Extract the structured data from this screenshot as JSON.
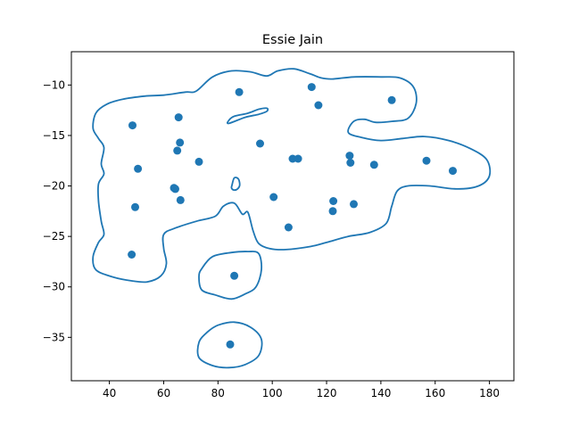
{
  "chart_data": {
    "type": "scatter",
    "title": "Essie Jain",
    "xlabel": "",
    "ylabel": "",
    "xlim": [
      26,
      189
    ],
    "ylim": [
      -39.3,
      -6.7
    ],
    "xticks": [
      40,
      60,
      80,
      100,
      120,
      140,
      160,
      180
    ],
    "yticks": [
      -35,
      -30,
      -25,
      -20,
      -15,
      -10
    ],
    "xtick_labels": [
      "40",
      "60",
      "80",
      "100",
      "120",
      "140",
      "160",
      "180"
    ],
    "ytick_labels": [
      "−35",
      "−30",
      "−25",
      "−20",
      "−15",
      "−10"
    ],
    "grid": false,
    "point_color": "#1f77b4",
    "contour_color": "#1f77b4",
    "points": [
      {
        "x": 48.5,
        "y": -14.0
      },
      {
        "x": 50.5,
        "y": -18.3
      },
      {
        "x": 49.5,
        "y": -22.1
      },
      {
        "x": 48.2,
        "y": -26.8
      },
      {
        "x": 65.5,
        "y": -13.2
      },
      {
        "x": 66.0,
        "y": -15.7
      },
      {
        "x": 65.0,
        "y": -16.5
      },
      {
        "x": 73.0,
        "y": -17.6
      },
      {
        "x": 63.8,
        "y": -20.2
      },
      {
        "x": 64.3,
        "y": -20.3
      },
      {
        "x": 66.2,
        "y": -21.4
      },
      {
        "x": 87.8,
        "y": -10.7
      },
      {
        "x": 95.5,
        "y": -15.8
      },
      {
        "x": 100.5,
        "y": -21.1
      },
      {
        "x": 106.0,
        "y": -24.1
      },
      {
        "x": 107.5,
        "y": -17.3
      },
      {
        "x": 109.5,
        "y": -17.3
      },
      {
        "x": 114.5,
        "y": -10.2
      },
      {
        "x": 117.0,
        "y": -12.0
      },
      {
        "x": 122.5,
        "y": -21.5
      },
      {
        "x": 122.3,
        "y": -22.5
      },
      {
        "x": 128.5,
        "y": -17.0
      },
      {
        "x": 128.8,
        "y": -17.7
      },
      {
        "x": 130.0,
        "y": -21.8
      },
      {
        "x": 137.5,
        "y": -17.9
      },
      {
        "x": 144.0,
        "y": -11.5
      },
      {
        "x": 156.8,
        "y": -17.5
      },
      {
        "x": 166.5,
        "y": -18.5
      },
      {
        "x": 86.0,
        "y": -28.9
      },
      {
        "x": 84.5,
        "y": -35.7
      }
    ],
    "contours": [
      [
        [
          60,
          -11.0
        ],
        [
          68,
          -10.7
        ],
        [
          72,
          -10.6
        ],
        [
          78,
          -9.2
        ],
        [
          85,
          -8.6
        ],
        [
          92,
          -8.7
        ],
        [
          98,
          -9.1
        ],
        [
          102,
          -8.6
        ],
        [
          108,
          -8.4
        ],
        [
          114,
          -8.9
        ],
        [
          118,
          -9.3
        ],
        [
          122,
          -9.4
        ],
        [
          130,
          -9.2
        ],
        [
          140,
          -9.2
        ],
        [
          147,
          -9.3
        ],
        [
          152,
          -10.2
        ],
        [
          153,
          -11.8
        ],
        [
          150,
          -13.3
        ],
        [
          144,
          -13.6
        ],
        [
          138,
          -13.7
        ],
        [
          134,
          -13.4
        ],
        [
          130,
          -13.6
        ],
        [
          128,
          -14.7
        ],
        [
          133,
          -15.2
        ],
        [
          140,
          -15.5
        ],
        [
          148,
          -15.3
        ],
        [
          156,
          -15.1
        ],
        [
          165,
          -15.5
        ],
        [
          173,
          -16.3
        ],
        [
          179,
          -17.4
        ],
        [
          180,
          -19.0
        ],
        [
          176,
          -20.0
        ],
        [
          168,
          -20.3
        ],
        [
          158,
          -20.0
        ],
        [
          150,
          -20.0
        ],
        [
          146,
          -20.5
        ],
        [
          144,
          -22.0
        ],
        [
          142,
          -23.7
        ],
        [
          136,
          -24.6
        ],
        [
          128,
          -25.0
        ],
        [
          120,
          -25.6
        ],
        [
          114,
          -26.0
        ],
        [
          105,
          -26.3
        ],
        [
          99,
          -26.2
        ],
        [
          95,
          -25.7
        ],
        [
          93,
          -24.5
        ],
        [
          91,
          -22.6
        ],
        [
          89,
          -22.8
        ],
        [
          86,
          -21.7
        ],
        [
          82,
          -22.0
        ],
        [
          79,
          -23.0
        ],
        [
          72,
          -23.5
        ],
        [
          64,
          -24.2
        ],
        [
          60,
          -24.8
        ],
        [
          60,
          -26.2
        ],
        [
          61,
          -27.7
        ],
        [
          59,
          -28.9
        ],
        [
          54,
          -29.5
        ],
        [
          48,
          -29.4
        ],
        [
          41,
          -29.0
        ],
        [
          35,
          -28.3
        ],
        [
          34,
          -27.0
        ],
        [
          36,
          -25.6
        ],
        [
          38,
          -24.8
        ],
        [
          37,
          -23.5
        ],
        [
          36,
          -21.5
        ],
        [
          36,
          -19.8
        ],
        [
          38,
          -18.8
        ],
        [
          37,
          -17.8
        ],
        [
          38,
          -16.2
        ],
        [
          36,
          -15.3
        ],
        [
          34,
          -14.3
        ],
        [
          35,
          -12.8
        ],
        [
          39,
          -11.9
        ],
        [
          45,
          -11.4
        ],
        [
          53,
          -11.1
        ],
        [
          60,
          -11.0
        ]
      ],
      [
        [
          84,
          -13.8
        ],
        [
          90,
          -13.2
        ],
        [
          95,
          -12.9
        ],
        [
          98,
          -12.6
        ],
        [
          98,
          -12.3
        ],
        [
          95,
          -12.4
        ],
        [
          91,
          -12.8
        ],
        [
          86,
          -13.1
        ],
        [
          84,
          -13.5
        ],
        [
          84,
          -13.8
        ]
      ],
      [
        [
          86,
          -19.2
        ],
        [
          87.5,
          -19.3
        ],
        [
          88,
          -19.9
        ],
        [
          87.2,
          -20.3
        ],
        [
          85.8,
          -20.4
        ],
        [
          85,
          -20.2
        ],
        [
          85.2,
          -19.9
        ],
        [
          86,
          -19.2
        ]
      ],
      [
        [
          78,
          -27.0
        ],
        [
          85,
          -26.6
        ],
        [
          91,
          -26.5
        ],
        [
          95,
          -26.7
        ],
        [
          96,
          -28.3
        ],
        [
          94,
          -30.0
        ],
        [
          90,
          -30.7
        ],
        [
          85,
          -31.2
        ],
        [
          79,
          -30.8
        ],
        [
          74,
          -30.3
        ],
        [
          73,
          -29.0
        ],
        [
          74,
          -28.2
        ],
        [
          78,
          -27.0
        ]
      ],
      [
        [
          80,
          -33.8
        ],
        [
          86,
          -33.5
        ],
        [
          92,
          -34.0
        ],
        [
          96,
          -35.2
        ],
        [
          95,
          -36.8
        ],
        [
          90,
          -37.7
        ],
        [
          84,
          -38.0
        ],
        [
          78,
          -37.8
        ],
        [
          73,
          -37.0
        ],
        [
          73,
          -35.5
        ],
        [
          76,
          -34.5
        ],
        [
          80,
          -33.8
        ]
      ]
    ]
  }
}
